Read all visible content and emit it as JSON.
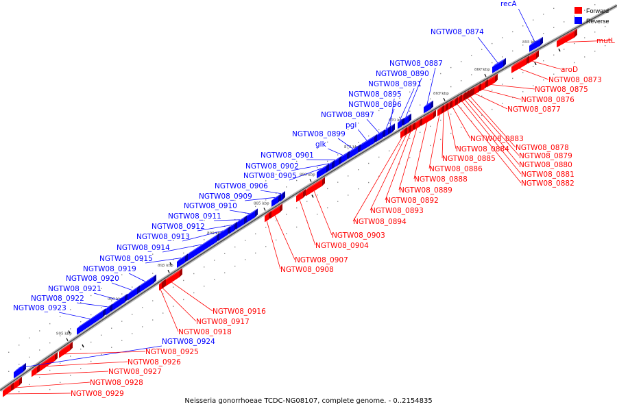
{
  "caption": "Neisseria gonorrhoeae TCDC-NG08107, complete genome. - 0..2154835",
  "legend": [
    {
      "label": "Forward",
      "color": "#ff0000"
    },
    {
      "label": "Reverse",
      "color": "#0000ff"
    }
  ],
  "colors": {
    "forward": "#ff0000",
    "reverse": "#0000ff",
    "backbone": "#808080"
  },
  "ticks": [
    "855 kbp",
    "860 kbp",
    "865 kbp",
    "870 kbp",
    "875 kbp",
    "880 kbp",
    "885 kbp",
    "890 kbp",
    "895 kbp",
    "900 kbp",
    "905 kbp"
  ],
  "reverse_labels": [
    "recA",
    "NGTW08_0874",
    "NGTW08_0887",
    "NGTW08_0890",
    "NGTW08_0891",
    "NGTW08_0895",
    "NGTW08_0896",
    "NGTW08_0897",
    "pgi",
    "NGTW08_0899",
    "glk",
    "NGTW08_0901",
    "NGTW08_0902",
    "NGTW08_0905",
    "NGTW08_0906",
    "NGTW08_0909",
    "NGTW08_0910",
    "NGTW08_0911",
    "NGTW08_0912",
    "NGTW08_0913",
    "NGTW08_0914",
    "NGTW08_0915",
    "NGTW08_0919",
    "NGTW08_0920",
    "NGTW08_0921",
    "NGTW08_0922",
    "NGTW08_0923",
    "NGTW08_0924"
  ],
  "forward_labels": [
    "mutL",
    "aroD",
    "NGTW08_0873",
    "NGTW08_0875",
    "NGTW08_0876",
    "NGTW08_0877",
    "NGTW08_0878",
    "NGTW08_0879",
    "NGTW08_0880",
    "NGTW08_0881",
    "NGTW08_0882",
    "NGTW08_0883",
    "NGTW08_0884",
    "NGTW08_0885",
    "NGTW08_0886",
    "NGTW08_0888",
    "NGTW08_0889",
    "NGTW08_0892",
    "NGTW08_0893",
    "NGTW08_0894",
    "NGTW08_0903",
    "NGTW08_0904",
    "NGTW08_0907",
    "NGTW08_0908",
    "NGTW08_0916",
    "NGTW08_0917",
    "NGTW08_0918",
    "NGTW08_0925",
    "NGTW08_0926",
    "NGTW08_0927",
    "NGTW08_0928",
    "NGTW08_0929"
  ]
}
